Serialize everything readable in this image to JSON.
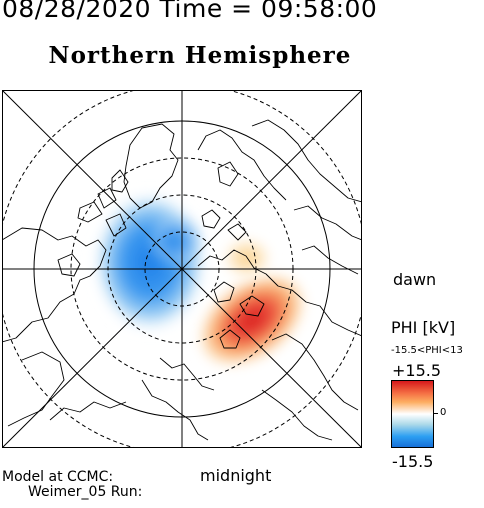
{
  "header": {
    "datetime": "08/28/2020 Time = 09:58:00"
  },
  "title": "Northern Hemisphere",
  "orientation_labels": {
    "dawn": "dawn",
    "midnight": "midnight"
  },
  "legend": {
    "title": "PHI [kV]",
    "range_text": "-15.5<PHI<13",
    "max_label": "+15.5",
    "zero_label": "0",
    "min_label": "-15.5",
    "colors": {
      "max": "#d7191c",
      "mid": "#ffffff",
      "min": "#1770d8"
    }
  },
  "credits": {
    "line1": "Model at CCMC:",
    "line2": "Weimer_05 Run:"
  },
  "potential_pattern": {
    "colormap": "blue-white-red",
    "positive_cell_sector": "dawn",
    "negative_cell_sector": "dusk"
  }
}
